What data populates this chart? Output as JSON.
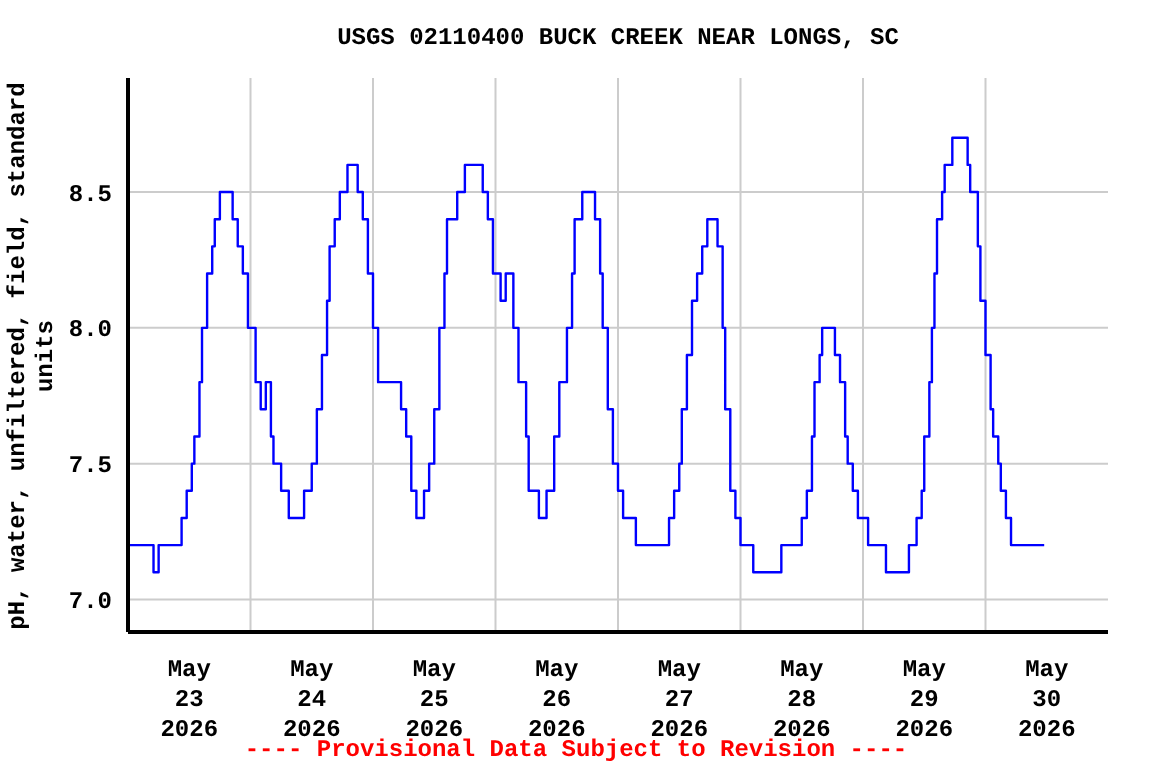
{
  "chart_data": {
    "type": "step",
    "title": "USGS 02110400 BUCK CREEK NEAR LONGS, SC",
    "ylabel": "pH, water, unfiltered, field, standard units",
    "annotations": [
      "---- Provisional Data Subject to Revision ----"
    ],
    "x": [
      "2026-05-23T00:00",
      "2026-05-23T05:00",
      "2026-05-23T06:00",
      "2026-05-23T10:30",
      "2026-05-23T11:30",
      "2026-05-23T12:30",
      "2026-05-23T13:00",
      "2026-05-23T14:00",
      "2026-05-23T14:30",
      "2026-05-23T15:30",
      "2026-05-23T16:30",
      "2026-05-23T17:00",
      "2026-05-23T18:00",
      "2026-05-23T20:30",
      "2026-05-23T21:30",
      "2026-05-23T22:30",
      "2026-05-23T23:30",
      "2026-05-24T01:00",
      "2026-05-24T02:00",
      "2026-05-24T03:00",
      "2026-05-24T04:00",
      "2026-05-24T04:30",
      "2026-05-24T06:00",
      "2026-05-24T07:30",
      "2026-05-24T10:30",
      "2026-05-24T12:00",
      "2026-05-24T13:00",
      "2026-05-24T14:00",
      "2026-05-24T15:00",
      "2026-05-24T15:30",
      "2026-05-24T16:30",
      "2026-05-24T17:30",
      "2026-05-24T19:00",
      "2026-05-24T21:00",
      "2026-05-24T22:00",
      "2026-05-24T23:00",
      "2026-05-25T00:00",
      "2026-05-25T01:00",
      "2026-05-25T05:30",
      "2026-05-25T06:30",
      "2026-05-25T07:30",
      "2026-05-25T08:30",
      "2026-05-25T10:00",
      "2026-05-25T11:00",
      "2026-05-25T12:00",
      "2026-05-25T13:00",
      "2026-05-25T14:00",
      "2026-05-25T14:30",
      "2026-05-25T16:30",
      "2026-05-25T18:00",
      "2026-05-25T21:30",
      "2026-05-25T22:30",
      "2026-05-25T23:30",
      "2026-05-26T01:00",
      "2026-05-26T02:00",
      "2026-05-26T03:30",
      "2026-05-26T04:30",
      "2026-05-26T06:00",
      "2026-05-26T06:30",
      "2026-05-26T08:30",
      "2026-05-26T10:00",
      "2026-05-26T11:30",
      "2026-05-26T12:30",
      "2026-05-26T14:00",
      "2026-05-26T15:00",
      "2026-05-26T15:30",
      "2026-05-26T17:00",
      "2026-05-26T19:30",
      "2026-05-26T20:30",
      "2026-05-26T21:00",
      "2026-05-26T22:00",
      "2026-05-26T23:00",
      "2026-05-27T00:00",
      "2026-05-27T01:00",
      "2026-05-27T03:30",
      "2026-05-27T10:00",
      "2026-05-27T11:00",
      "2026-05-27T12:00",
      "2026-05-27T12:30",
      "2026-05-27T13:30",
      "2026-05-27T14:30",
      "2026-05-27T15:30",
      "2026-05-27T16:30",
      "2026-05-27T17:30",
      "2026-05-27T19:30",
      "2026-05-27T20:30",
      "2026-05-27T21:00",
      "2026-05-27T22:00",
      "2026-05-27T23:00",
      "2026-05-28T00:00",
      "2026-05-28T02:30",
      "2026-05-28T08:00",
      "2026-05-28T12:00",
      "2026-05-28T13:00",
      "2026-05-28T14:00",
      "2026-05-28T14:30",
      "2026-05-28T15:30",
      "2026-05-28T16:00",
      "2026-05-28T18:30",
      "2026-05-28T19:30",
      "2026-05-28T20:30",
      "2026-05-28T21:00",
      "2026-05-28T22:00",
      "2026-05-28T23:00",
      "2026-05-29T01:00",
      "2026-05-29T04:30",
      "2026-05-29T09:00",
      "2026-05-29T10:30",
      "2026-05-29T11:30",
      "2026-05-29T12:00",
      "2026-05-29T13:00",
      "2026-05-29T13:30",
      "2026-05-29T14:00",
      "2026-05-29T14:30",
      "2026-05-29T15:30",
      "2026-05-29T16:00",
      "2026-05-29T17:30",
      "2026-05-29T20:30",
      "2026-05-29T21:00",
      "2026-05-29T22:30",
      "2026-05-29T23:00",
      "2026-05-30T00:00",
      "2026-05-30T01:00",
      "2026-05-30T01:30",
      "2026-05-30T02:30",
      "2026-05-30T03:00",
      "2026-05-30T04:00",
      "2026-05-30T05:00",
      "2026-05-30T11:30"
    ],
    "series": [
      {
        "color": "#0000ff",
        "values": [
          7.2,
          7.1,
          7.2,
          7.3,
          7.4,
          7.5,
          7.6,
          7.8,
          8.0,
          8.2,
          8.3,
          8.4,
          8.5,
          8.4,
          8.3,
          8.2,
          8.0,
          7.8,
          7.7,
          7.8,
          7.6,
          7.5,
          7.4,
          7.3,
          7.4,
          7.5,
          7.7,
          7.9,
          8.1,
          8.3,
          8.4,
          8.5,
          8.6,
          8.5,
          8.4,
          8.2,
          8.0,
          7.8,
          7.7,
          7.6,
          7.4,
          7.3,
          7.4,
          7.5,
          7.7,
          8.0,
          8.2,
          8.4,
          8.5,
          8.6,
          8.5,
          8.4,
          8.2,
          8.1,
          8.2,
          8.0,
          7.8,
          7.6,
          7.4,
          7.3,
          7.4,
          7.6,
          7.8,
          8.0,
          8.2,
          8.4,
          8.5,
          8.4,
          8.2,
          8.0,
          7.7,
          7.5,
          7.4,
          7.3,
          7.2,
          7.3,
          7.4,
          7.5,
          7.7,
          7.9,
          8.1,
          8.2,
          8.3,
          8.4,
          8.3,
          8.0,
          7.7,
          7.4,
          7.3,
          7.2,
          7.1,
          7.2,
          7.3,
          7.4,
          7.6,
          7.8,
          7.9,
          8.0,
          7.9,
          7.8,
          7.6,
          7.5,
          7.4,
          7.3,
          7.2,
          7.1,
          7.2,
          7.3,
          7.4,
          7.6,
          7.8,
          8.0,
          8.2,
          8.4,
          8.5,
          8.6,
          8.7,
          8.6,
          8.5,
          8.3,
          8.1,
          7.9,
          7.7,
          7.6,
          7.5,
          7.4,
          7.3,
          7.2,
          7.2
        ]
      }
    ],
    "xlim": [
      "2026-05-23T00:00",
      "2026-05-31T00:00"
    ],
    "xticks": [
      {
        "value": "2026-05-23T12:00",
        "label": "May 23 2026"
      },
      {
        "value": "2026-05-24T00:00",
        "label": null
      },
      {
        "value": "2026-05-24T12:00",
        "label": "May 24 2026"
      },
      {
        "value": "2026-05-25T00:00",
        "label": null
      },
      {
        "value": "2026-05-25T12:00",
        "label": "May 25 2026"
      },
      {
        "value": "2026-05-26T00:00",
        "label": null
      },
      {
        "value": "2026-05-26T12:00",
        "label": "May 26 2026"
      },
      {
        "value": "2026-05-27T00:00",
        "label": null
      },
      {
        "value": "2026-05-27T12:00",
        "label": "May 27 2026"
      },
      {
        "value": "2026-05-28T00:00",
        "label": null
      },
      {
        "value": "2026-05-28T12:00",
        "label": "May 28 2026"
      },
      {
        "value": "2026-05-29T00:00",
        "label": null
      },
      {
        "value": "2026-05-29T12:00",
        "label": "May 29 2026"
      },
      {
        "value": "2026-05-30T00:00",
        "label": null
      },
      {
        "value": "2026-05-30T12:00",
        "label": "May 30 2026"
      }
    ],
    "ylim": [
      6.88,
      8.92
    ],
    "yticks": [
      {
        "value": 7,
        "label": "7.0"
      },
      {
        "value": 7.5,
        "label": "7.5"
      },
      {
        "value": 8,
        "label": "8.0"
      },
      {
        "value": 8.5,
        "label": "8.5"
      }
    ],
    "grid": true
  }
}
